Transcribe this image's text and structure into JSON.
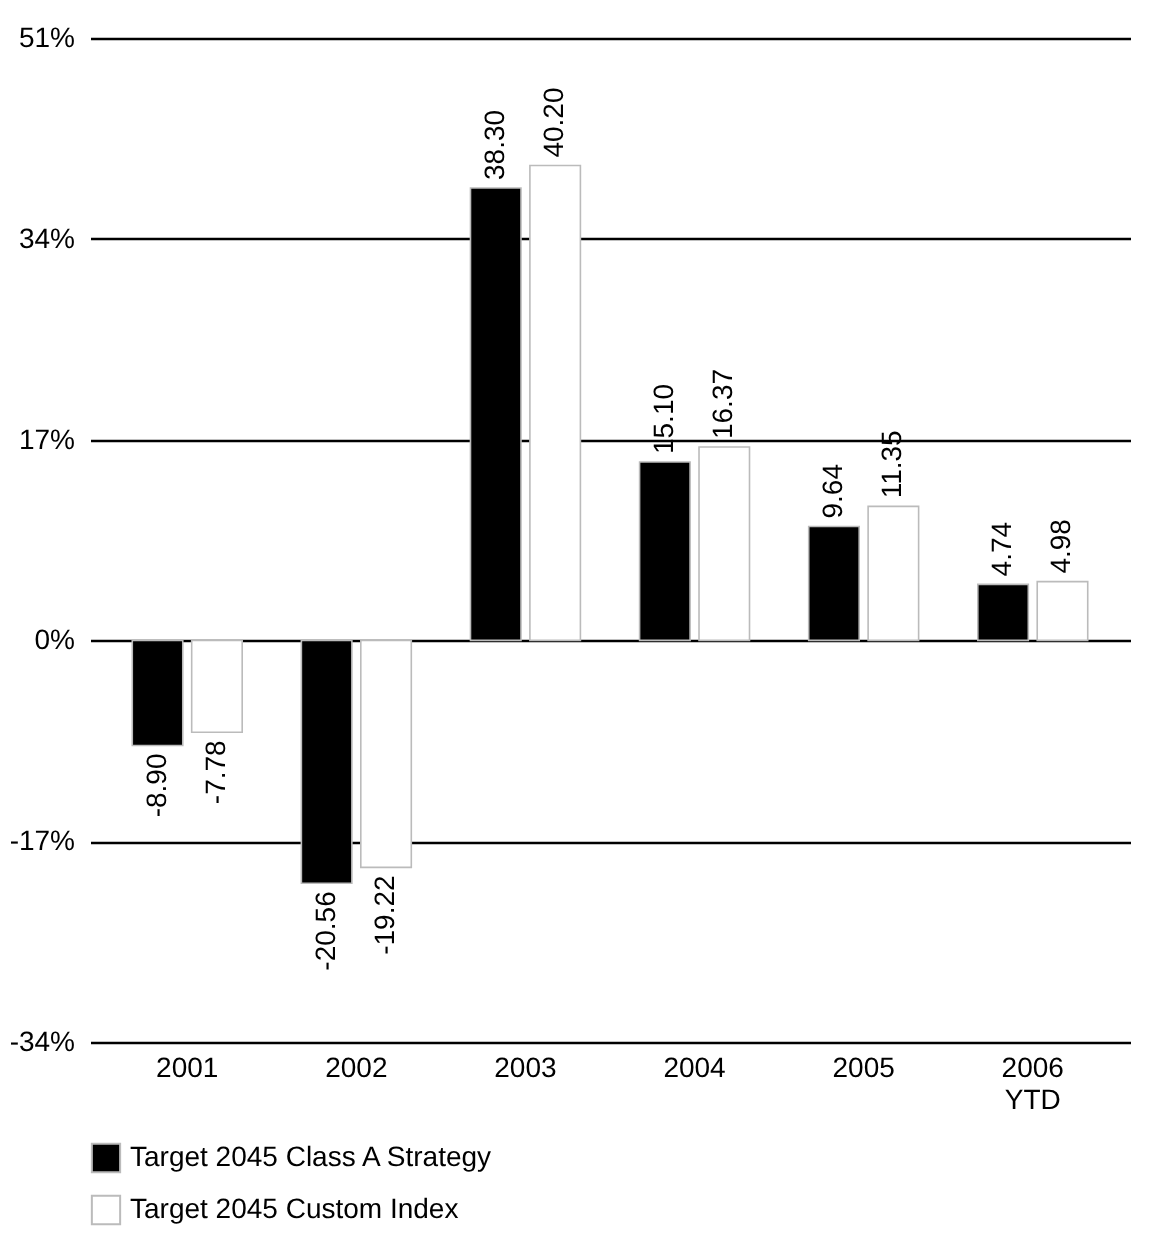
{
  "chart_data": {
    "type": "bar",
    "categories": [
      "2001",
      "2002",
      "2003",
      "2004",
      "2005",
      "2006\nYTD"
    ],
    "series": [
      {
        "name": "Target 2045 Class A Strategy",
        "color": "#000000",
        "values": [
          -8.9,
          -20.56,
          38.3,
          15.1,
          9.64,
          4.74
        ],
        "value_labels": [
          "-8.90",
          "-20.56",
          "38.30",
          "15.10",
          "9.64",
          "4.74"
        ]
      },
      {
        "name": "Target 2045 Custom Index",
        "color": "#ffffff",
        "values": [
          -7.78,
          -19.22,
          40.2,
          16.37,
          11.35,
          4.98
        ],
        "value_labels": [
          "-7.78",
          "-19.22",
          "40.20",
          "16.37",
          "11.35",
          "4.98"
        ]
      }
    ],
    "ylim": [
      -34,
      51
    ],
    "yticks": [
      {
        "value": -34,
        "label": "-34%"
      },
      {
        "value": -17,
        "label": "-17%"
      },
      {
        "value": 0,
        "label": "0%"
      },
      {
        "value": 17,
        "label": "17%"
      },
      {
        "value": 34,
        "label": "34%"
      },
      {
        "value": 51,
        "label": "51%"
      }
    ],
    "grid": "y",
    "legend": "bottom left"
  }
}
